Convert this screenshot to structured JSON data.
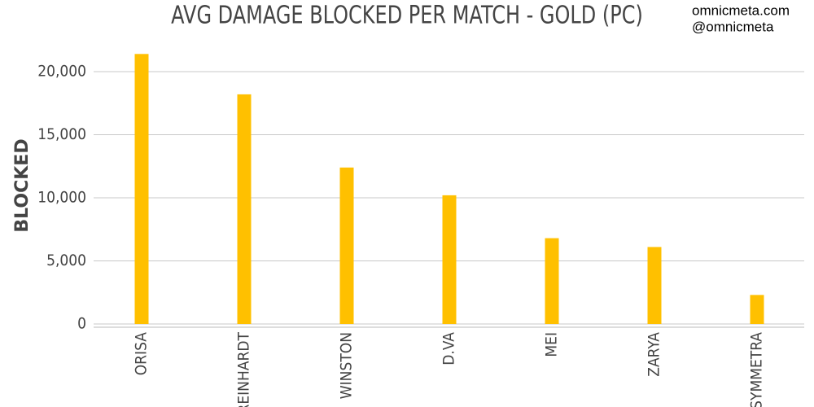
{
  "chart_data": {
    "type": "bar",
    "title": "AVG DAMAGE BLOCKED PER MATCH - GOLD (PC)",
    "annotations": [
      "omnicmeta.com",
      "@omnicmeta"
    ],
    "y_label": "BLOCKED",
    "categories": [
      "ORISA",
      "REINHARDT",
      "WINSTON",
      "D.VA",
      "MEI",
      "ZARYA",
      "SYMMETRA"
    ],
    "values": [
      21400,
      18200,
      12400,
      10200,
      6800,
      6100,
      2300
    ],
    "color": "#ffc000",
    "ylim": [
      0,
      22000
    ],
    "yticks": [
      0,
      {
        "value": 5000,
        "label": "5,000"
      },
      {
        "value": 10000,
        "label": "10,000"
      },
      {
        "value": 15000,
        "label": "15,000"
      },
      {
        "value": 20000,
        "label": "20,000"
      }
    ],
    "grid": true
  }
}
